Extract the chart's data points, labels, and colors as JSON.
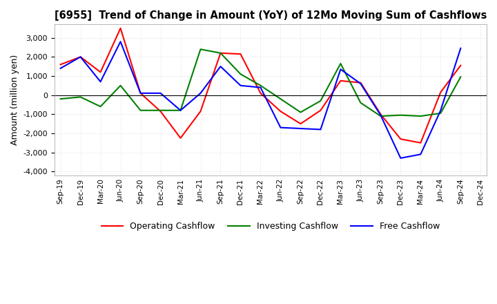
{
  "title": "[6955]  Trend of Change in Amount (YoY) of 12Mo Moving Sum of Cashflows",
  "ylabel": "Amount (million yen)",
  "ylim": [
    -4200,
    3700
  ],
  "yticks": [
    -4000,
    -3000,
    -2000,
    -1000,
    0,
    1000,
    2000,
    3000
  ],
  "x_labels": [
    "Sep-19",
    "Dec-19",
    "Mar-20",
    "Jun-20",
    "Sep-20",
    "Dec-20",
    "Mar-21",
    "Jun-21",
    "Sep-21",
    "Dec-21",
    "Mar-22",
    "Jun-22",
    "Sep-22",
    "Dec-22",
    "Mar-23",
    "Jun-23",
    "Sep-23",
    "Dec-23",
    "Mar-24",
    "Jun-24",
    "Sep-24",
    "Dec-24"
  ],
  "operating": [
    1600,
    2000,
    1200,
    3500,
    100,
    -850,
    -2250,
    -850,
    2200,
    2150,
    100,
    -850,
    -1500,
    -800,
    750,
    650,
    -1000,
    -2300,
    -2500,
    150,
    1550,
    null
  ],
  "investing": [
    -200,
    -100,
    -600,
    500,
    -800,
    -800,
    -800,
    2400,
    2200,
    1100,
    500,
    -200,
    -900,
    -300,
    1650,
    -400,
    -1100,
    -1050,
    -1100,
    -950,
    950,
    null
  ],
  "free": [
    1400,
    2000,
    700,
    2800,
    100,
    100,
    -800,
    100,
    1500,
    500,
    400,
    -1700,
    -1750,
    -1800,
    1350,
    600,
    -1050,
    -3300,
    -3100,
    -800,
    2450,
    null
  ],
  "colors": {
    "operating": "#ff0000",
    "investing": "#008000",
    "free": "#0000ff"
  },
  "legend_labels": [
    "Operating Cashflow",
    "Investing Cashflow",
    "Free Cashflow"
  ],
  "background_color": "#ffffff",
  "grid_color": "#d0d0d0"
}
